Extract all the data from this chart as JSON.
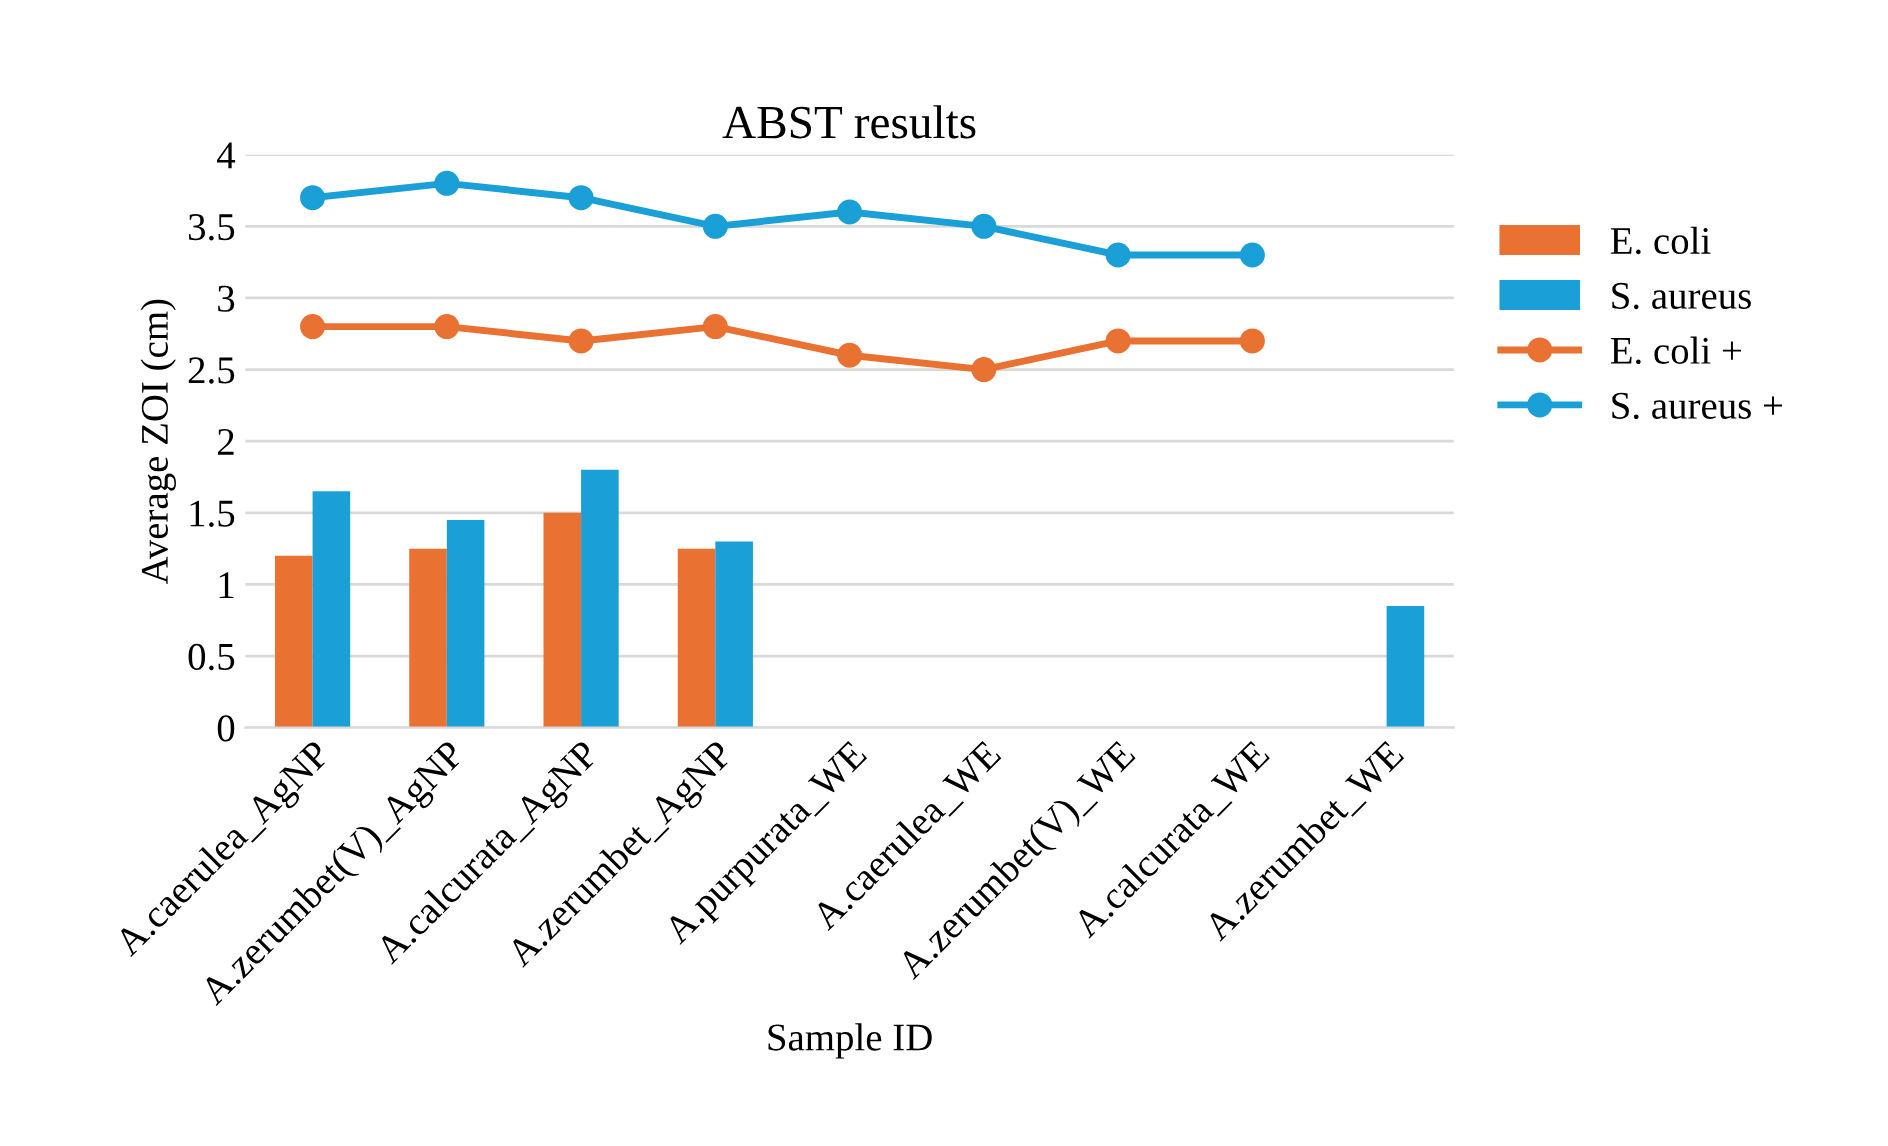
{
  "chart_data": {
    "type": "bar",
    "title": "ABST results",
    "xlabel": "Sample ID",
    "ylabel": "Average ZOI (cm)",
    "categories": [
      "A.caerulea_AgNP",
      "A.zerumbet(V)_AgNP",
      "A.calcurata_AgNP",
      "A.zerumbet_AgNP",
      "A.purpurata_WE",
      "A.caerulea_WE",
      "A.zerumbet(V)_WE",
      "A.calcurata_WE",
      "A.zerumbet_WE"
    ],
    "series": [
      {
        "name": "E. coli",
        "color": "#e97132",
        "values": [
          1.2,
          1.25,
          1.5,
          1.25,
          null,
          null,
          null,
          null,
          null
        ]
      },
      {
        "name": "S. aureus",
        "color": "#1a9fd6",
        "values": [
          1.65,
          1.45,
          1.8,
          1.3,
          null,
          null,
          null,
          null,
          0.85
        ]
      },
      {
        "name": "E. coli +",
        "type": "line",
        "color": "#e97132",
        "values": [
          2.8,
          2.8,
          2.7,
          2.8,
          2.6,
          2.5,
          2.7,
          2.7,
          null
        ]
      },
      {
        "name": "S. aureus +",
        "type": "line",
        "color": "#1a9fd6",
        "values": [
          3.7,
          3.8,
          3.7,
          3.5,
          3.6,
          3.5,
          3.3,
          3.3,
          null
        ]
      }
    ],
    "ylim": [
      0,
      4
    ],
    "yticks": [
      0,
      0.5,
      1,
      1.5,
      2,
      2.5,
      3,
      3.5,
      4
    ],
    "grid": "y",
    "legend": "right",
    "marker": "circle",
    "line_style": "solid"
  }
}
